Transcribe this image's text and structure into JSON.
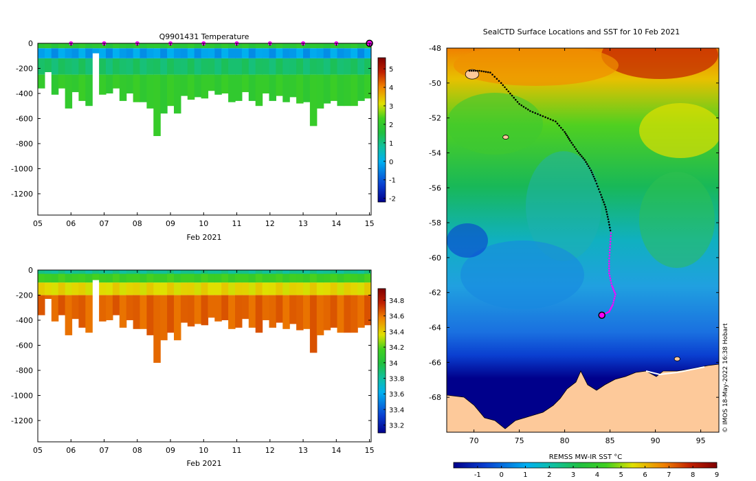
{
  "chart_data": [
    {
      "type": "heatmap",
      "title": "Q9901431  Temperature",
      "xlabel": "Feb 2021",
      "ylabel": "",
      "x_ticks": [
        "05",
        "06",
        "07",
        "08",
        "09",
        "10",
        "11",
        "12",
        "13",
        "14",
        "15"
      ],
      "xlim": [
        5,
        15.05
      ],
      "y_ticks": [
        0,
        -200,
        -400,
        -600,
        -800,
        -1000,
        -1200
      ],
      "ylim": [
        -1370,
        0
      ],
      "colorbar_ticks": [
        5,
        4,
        3,
        2,
        1,
        0,
        -1,
        -2
      ],
      "colorbar_range": [
        -2.2,
        5.6
      ],
      "colormap": [
        "#00008b",
        "#0a3fd0",
        "#00b0f0",
        "#10c0a0",
        "#20c040",
        "#40d020",
        "#e0e000",
        "#f08000",
        "#c02000",
        "#800000"
      ],
      "surface_marker_days": [
        6,
        7,
        8,
        9,
        10,
        11,
        12,
        13,
        14
      ],
      "marker_color": "#ff00ff",
      "last_profile_marker_day": 15,
      "profile_bottom_depths": [
        -360,
        -230,
        -410,
        -360,
        -520,
        -390,
        -460,
        -500,
        -80,
        -410,
        -400,
        -360,
        -460,
        -400,
        -470,
        -470,
        -520,
        -740,
        -560,
        -500,
        -560,
        -420,
        -450,
        -430,
        -440,
        -380,
        -410,
        -400,
        -470,
        -460,
        -390,
        -460,
        -500,
        -400,
        -460,
        -420,
        -470,
        -430,
        -480,
        -470,
        -660,
        -520,
        -480,
        -460,
        -500,
        -500,
        -500,
        -460,
        -440
      ],
      "layers": [
        {
          "to": -40,
          "value": 1.6
        },
        {
          "to": -120,
          "value": -0.6
        },
        {
          "to": -250,
          "value": 0.9
        },
        {
          "to": -9999,
          "value": 1.8
        }
      ]
    },
    {
      "type": "heatmap",
      "title": "",
      "xlabel": "Feb 2021",
      "ylabel": "",
      "x_ticks": [
        "05",
        "06",
        "07",
        "08",
        "09",
        "10",
        "11",
        "12",
        "13",
        "14",
        "15"
      ],
      "xlim": [
        5,
        15.05
      ],
      "y_ticks": [
        0,
        -200,
        -400,
        -600,
        -800,
        -1000,
        -1200
      ],
      "ylim": [
        -1370,
        0
      ],
      "colorbar_ticks": [
        34.8,
        34.6,
        34.4,
        34.2,
        34,
        33.8,
        33.6,
        33.4,
        33.2
      ],
      "colorbar_range": [
        33.1,
        34.95
      ],
      "colormap": [
        "#00008b",
        "#0a3fd0",
        "#00b0f0",
        "#10c0a0",
        "#20c040",
        "#40d020",
        "#e0e000",
        "#f08000",
        "#c02000",
        "#800000"
      ],
      "profile_bottom_depths": [
        -360,
        -230,
        -410,
        -360,
        -520,
        -390,
        -460,
        -500,
        -80,
        -410,
        -400,
        -360,
        -460,
        -400,
        -470,
        -470,
        -520,
        -740,
        -560,
        -500,
        -560,
        -420,
        -450,
        -430,
        -440,
        -380,
        -410,
        -400,
        -470,
        -460,
        -390,
        -460,
        -500,
        -400,
        -460,
        -420,
        -470,
        -430,
        -480,
        -470,
        -660,
        -520,
        -480,
        -460,
        -500,
        -500,
        -500,
        -460,
        -440
      ],
      "layers": [
        {
          "to": -30,
          "value": 33.75
        },
        {
          "to": -100,
          "value": 34.1
        },
        {
          "to": -200,
          "value": 34.35
        },
        {
          "to": -9999,
          "value": 34.6
        }
      ]
    },
    {
      "type": "map",
      "title": "SealCTD Surface Locations and SST for 10 Feb 2021",
      "xlabel": "REMSS MW-IR SST °C",
      "x_ticks": [
        70,
        75,
        80,
        85,
        90,
        95
      ],
      "xlim": [
        67,
        97
      ],
      "y_ticks": [
        -48,
        -50,
        -52,
        -54,
        -56,
        -58,
        -60,
        -62,
        -64,
        -66,
        -68
      ],
      "ylim": [
        -70,
        -48
      ],
      "colorbar_ticks": [
        -1,
        0,
        1,
        2,
        3,
        4,
        5,
        6,
        7,
        8,
        9
      ],
      "colorbar_range": [
        -2,
        9
      ],
      "colormap": [
        "#00008b",
        "#0a3fd0",
        "#00b0f0",
        "#10c0a0",
        "#20c040",
        "#40d020",
        "#e0e000",
        "#f08000",
        "#c02000",
        "#800000"
      ],
      "land_color": "#fdc99a",
      "credit": "© IMOS 18-May-2022 16:38 Hobart",
      "track": [
        [
          69.5,
          -49.3
        ],
        [
          70.6,
          -49.3
        ],
        [
          71.8,
          -49.4
        ],
        [
          73,
          -50.0
        ],
        [
          74,
          -50.6
        ],
        [
          75,
          -51.2
        ],
        [
          76.2,
          -51.6
        ],
        [
          77.6,
          -51.9
        ],
        [
          79,
          -52.2
        ],
        [
          80,
          -52.8
        ],
        [
          80.6,
          -53.3
        ],
        [
          81.4,
          -53.9
        ],
        [
          82.2,
          -54.4
        ],
        [
          82.9,
          -55
        ],
        [
          83.4,
          -55.6
        ],
        [
          84,
          -56.4
        ],
        [
          84.5,
          -57.1
        ],
        [
          84.8,
          -57.8
        ],
        [
          85.1,
          -58.6
        ],
        [
          85.0,
          -59.4
        ],
        [
          84.9,
          -60.2
        ],
        [
          84.9,
          -60.9
        ],
        [
          85.2,
          -61.6
        ],
        [
          85.6,
          -62.1
        ],
        [
          85.3,
          -62.7
        ],
        [
          84.9,
          -63.1
        ],
        [
          84.1,
          -63.3
        ]
      ],
      "recent_track_from_index": 18,
      "current_position": [
        84.1,
        -63.3
      ],
      "islands": [
        [
          69.8,
          -49.5
        ],
        [
          73.5,
          -53.1
        ],
        [
          92.4,
          -65.8
        ]
      ]
    }
  ]
}
